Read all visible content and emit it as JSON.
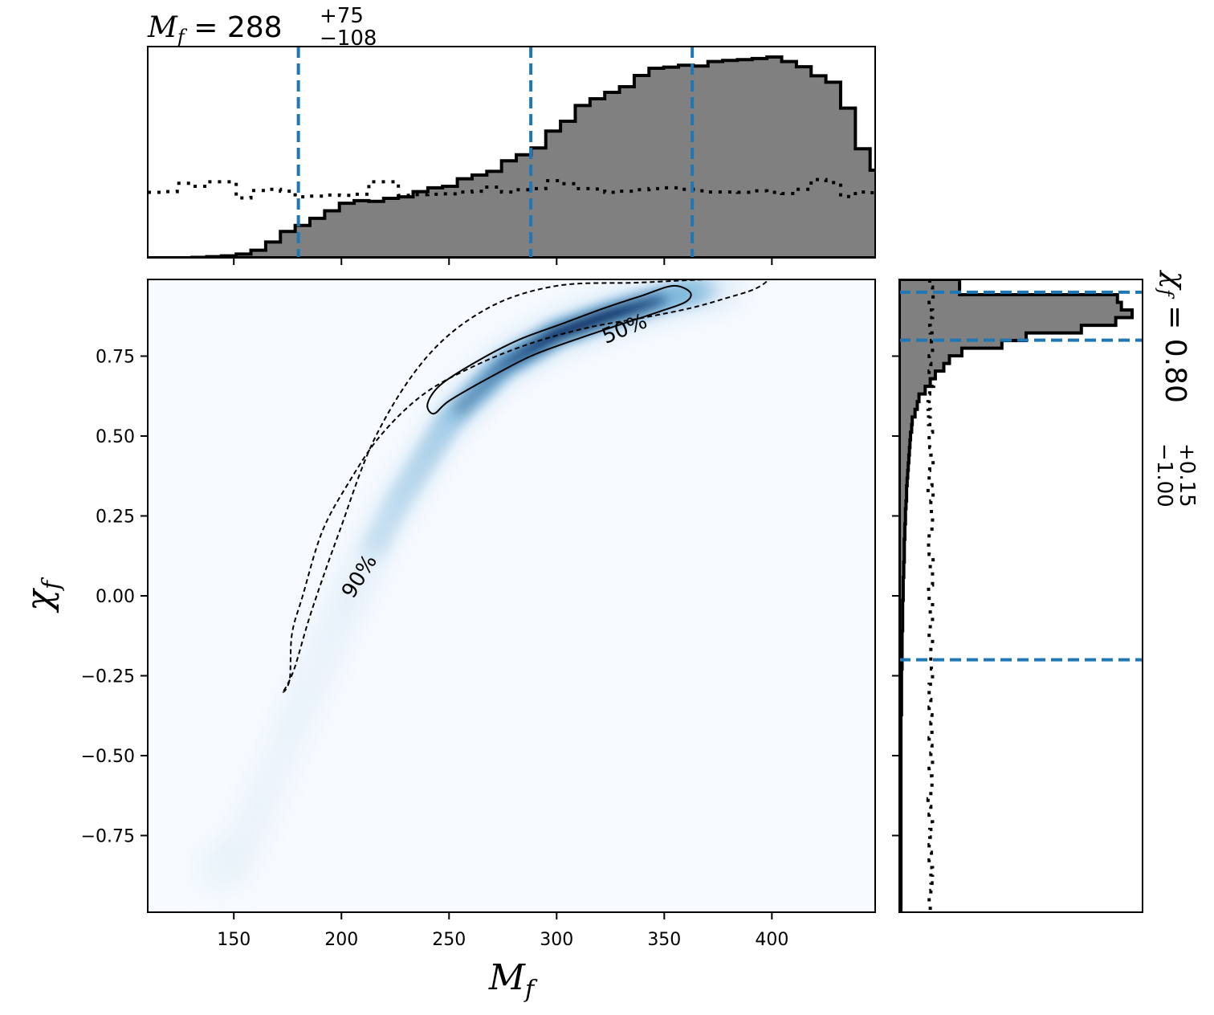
{
  "chart_data": {
    "type": "corner",
    "xlabel": "M",
    "xlabel_sub": "f",
    "ylabel": "χ",
    "ylabel_sub": "f",
    "xlim": [
      110,
      448
    ],
    "ylim": [
      -0.99,
      0.99
    ],
    "xticks": [
      150,
      200,
      250,
      300,
      350,
      400
    ],
    "xtick_labels": [
      "150",
      "200",
      "250",
      "300",
      "350",
      "400"
    ],
    "yticks": [
      0.75,
      0.5,
      0.25,
      0.0,
      -0.25,
      -0.5,
      -0.75
    ],
    "ytick_labels": [
      "0.75",
      "0.50",
      "0.25",
      "0.00",
      "−0.25",
      "−0.50",
      "−0.75"
    ],
    "top_title": {
      "symbol": "M",
      "sub": "f",
      "equals": " = 288",
      "plus": "+75",
      "minus": "−108"
    },
    "right_title": {
      "symbol": "χ",
      "sub": "f",
      "equals": " = 0.80",
      "plus": "+0.15",
      "minus": "−1.00"
    },
    "contour_labels": [
      "50%",
      "90%"
    ],
    "mf_quantile_lines": [
      180,
      288,
      363
    ],
    "chi_quantile_lines": [
      0.95,
      0.8,
      -0.2
    ],
    "mf_histogram": {
      "bin_edges_start": 110,
      "bin_width": 6.85,
      "posterior_counts": [
        0,
        0,
        0,
        0.1,
        0.3,
        0.5,
        1.0,
        2.0,
        4.2,
        7.0,
        8.6,
        10.5,
        12.5,
        14.5,
        15.2,
        15.0,
        15.8,
        16.2,
        17.6,
        18.6,
        19.0,
        21.0,
        22.0,
        23.0,
        25.8,
        27.4,
        29.2,
        33.7,
        36.3,
        40.5,
        42.3,
        44.0,
        45.5,
        48.5,
        50.4,
        50.7,
        51.2,
        51.0,
        52.2,
        52.5,
        52.7,
        53.0,
        53.4,
        52.2,
        50.8,
        48.4,
        46.7,
        39.8,
        29.0,
        23.3,
        16.2,
        11.8,
        8.5,
        7.0,
        5.4,
        3.7,
        2.8,
        0.3,
        0.2,
        0.1,
        0,
        0,
        0,
        0,
        0,
        0
      ],
      "prior_counts": [
        17.4,
        17.6,
        19.8,
        19.0,
        20.2,
        20.2,
        15.9,
        17.9,
        18.2,
        17.7,
        16.2,
        16.4,
        16.7,
        16.6,
        16.9,
        20.2,
        20.2,
        16.6,
        16.8,
        16.9,
        17.0,
        17.5,
        17.7,
        18.8,
        17.5,
        18.1,
        18.4,
        20.5,
        19.7,
        18.4,
        18.3,
        17.4,
        17.7,
        18.1,
        18.4,
        18.6,
        18.2,
        17.8,
        17.5,
        17.5,
        17.4,
        17.8,
        17.4,
        17.1,
        18.2,
        20.8,
        20.0,
        16.3,
        17.5,
        17.3,
        16.1,
        17.7,
        18.0,
        17.6,
        18.2,
        16.3,
        18.3,
        19.0,
        17.8,
        19.8,
        18.8,
        18.4,
        18.1,
        19.4,
        18.7,
        18.7
      ]
    },
    "chi_histogram": {
      "bin_edges_start": 0.99,
      "bin_width": 0.0239,
      "posterior_counts": [
        10.7,
        10.7,
        38.7,
        39.4,
        41.3,
        38.4,
        32.3,
        22.5,
        18.2,
        11.1,
        8.9,
        7.9,
        6.4,
        5.5,
        4.6,
        3.5,
        3.2,
        2.8,
        2.3,
        2.2,
        2.0,
        1.9,
        1.8,
        1.7,
        1.6,
        1.5,
        1.4,
        1.3,
        1.3,
        1.2,
        1.1,
        1.1,
        1.0,
        1.0,
        0.9,
        0.9,
        0.9,
        0.8,
        0.8,
        0.7,
        0.7,
        0.7,
        0.6,
        0.6,
        0.6,
        0.6,
        0.5,
        0.5,
        0.5,
        0.5,
        0.5,
        0.4,
        0.4,
        0.4,
        0.4,
        0.4,
        0.4,
        0.3,
        0.3,
        0.3,
        0.3,
        0.3,
        0.3,
        0.3,
        0.3,
        0.3,
        0.3,
        0.3,
        0.3,
        0.3,
        0.3,
        0.3,
        0.3,
        0.3,
        0.3,
        0.3,
        0.3,
        0.3,
        0.3,
        0.3,
        0.3,
        0.3,
        0.3
      ],
      "prior_counts": [
        5.4,
        5.9,
        6.0,
        5.3,
        5.9,
        5.4,
        5.5,
        5.8,
        5.7,
        5.9,
        5.3,
        5.6,
        5.3,
        6.1,
        5.4,
        5.3,
        5.1,
        5.5,
        5.2,
        5.9,
        5.3,
        5.4,
        5.6,
        6.0,
        5.4,
        5.3,
        5.8,
        5.1,
        6.0,
        5.6,
        5.7,
        5.9,
        5.8,
        5.3,
        5.2,
        5.3,
        6.0,
        5.5,
        5.9,
        5.9,
        5.2,
        5.3,
        5.9,
        5.5,
        5.9,
        5.5,
        5.3,
        5.9,
        5.6,
        5.6,
        5.7,
        5.9,
        5.9,
        5.3,
        5.3,
        5.6,
        5.3,
        5.8,
        5.6,
        5.8,
        5.3,
        5.8,
        5.6,
        5.9,
        5.3,
        5.8,
        5.8,
        5.6,
        5.1,
        5.6,
        5.3,
        5.9,
        5.4,
        5.5,
        5.3,
        5.7,
        5.3,
        5.9,
        5.6,
        5.8,
        5.6,
        5.3,
        5.5
      ]
    },
    "density_ridge": {
      "mf": [
        150,
        175,
        200,
        225,
        250,
        275,
        300,
        325,
        350,
        375
      ],
      "chi": [
        -0.85,
        -0.45,
        -0.05,
        0.28,
        0.55,
        0.72,
        0.82,
        0.88,
        0.93,
        0.97
      ]
    },
    "contour_50": {
      "mf": [
        243,
        240,
        246,
        262,
        282,
        302,
        322,
        340,
        354,
        362,
        360,
        348,
        330,
        308,
        288,
        268,
        250,
        243
      ],
      "chi": [
        0.57,
        0.6,
        0.66,
        0.73,
        0.8,
        0.85,
        0.9,
        0.94,
        0.97,
        0.95,
        0.92,
        0.89,
        0.85,
        0.8,
        0.75,
        0.68,
        0.61,
        0.57
      ]
    },
    "contour_90": {
      "mf": [
        173,
        176,
        177,
        182,
        191,
        203,
        218,
        238,
        262,
        288,
        315,
        340,
        362,
        378,
        392,
        398,
        390,
        370,
        338,
        300,
        268,
        240,
        216,
        199,
        186,
        178,
        173
      ],
      "chi": [
        -0.3,
        -0.26,
        -0.12,
        0.0,
        0.2,
        0.35,
        0.5,
        0.63,
        0.72,
        0.79,
        0.84,
        0.87,
        0.9,
        0.93,
        0.96,
        0.99,
        0.99,
        0.99,
        0.98,
        0.97,
        0.9,
        0.75,
        0.5,
        0.2,
        -0.05,
        -0.23,
        -0.3
      ]
    },
    "colors": {
      "posterior_fill": "#808080",
      "quantile_line": "#1f77b4",
      "density_low": "#f7fbff",
      "density_high": "#08306b"
    }
  }
}
